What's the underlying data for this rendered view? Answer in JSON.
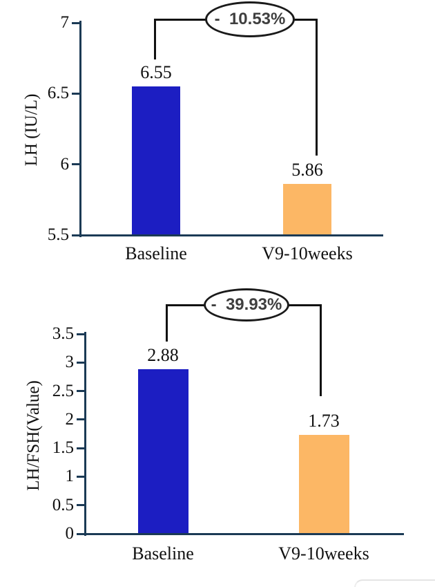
{
  "chart_data": [
    {
      "type": "bar",
      "title": "",
      "categories": [
        "Baseline",
        "V9-10weeks"
      ],
      "values": [
        6.55,
        5.86
      ],
      "value_labels": [
        "6.55",
        "5.86"
      ],
      "xlabel": "",
      "ylabel": "LH (IU/L)",
      "ylim": [
        5.5,
        7
      ],
      "ytick_step": 0.5,
      "ytick_labels": [
        "7",
        "6.5",
        "6",
        "5.5"
      ],
      "grid": false,
      "legend": false,
      "annotation": "-  10.53%",
      "bar_colors": [
        "#1c1ec2",
        "#fcb765"
      ]
    },
    {
      "type": "bar",
      "title": "",
      "categories": [
        "Baseline",
        "V9-10weeks"
      ],
      "values": [
        2.88,
        1.73
      ],
      "value_labels": [
        "2.88",
        "1.73"
      ],
      "xlabel": "",
      "ylabel": "LH/FSH(Value)",
      "ylim": [
        0,
        3.5
      ],
      "ytick_step": 0.5,
      "ytick_labels": [
        "3.5",
        "3",
        "2.5",
        "2",
        "1.5",
        "1",
        "0.5",
        "0"
      ],
      "grid": false,
      "legend": false,
      "annotation": "-  39.93%",
      "bar_colors": [
        "#1c1ec2",
        "#fcb765"
      ]
    }
  ],
  "style": {
    "background": "#ffffff",
    "axis_color": "#1b3a55",
    "bar_blue": "#1c1ec2",
    "bar_orange": "#fcb765",
    "bracket_line_color": "#111111",
    "annotation_text_color": "#3f3f3f",
    "label_text_color": "#111111"
  }
}
